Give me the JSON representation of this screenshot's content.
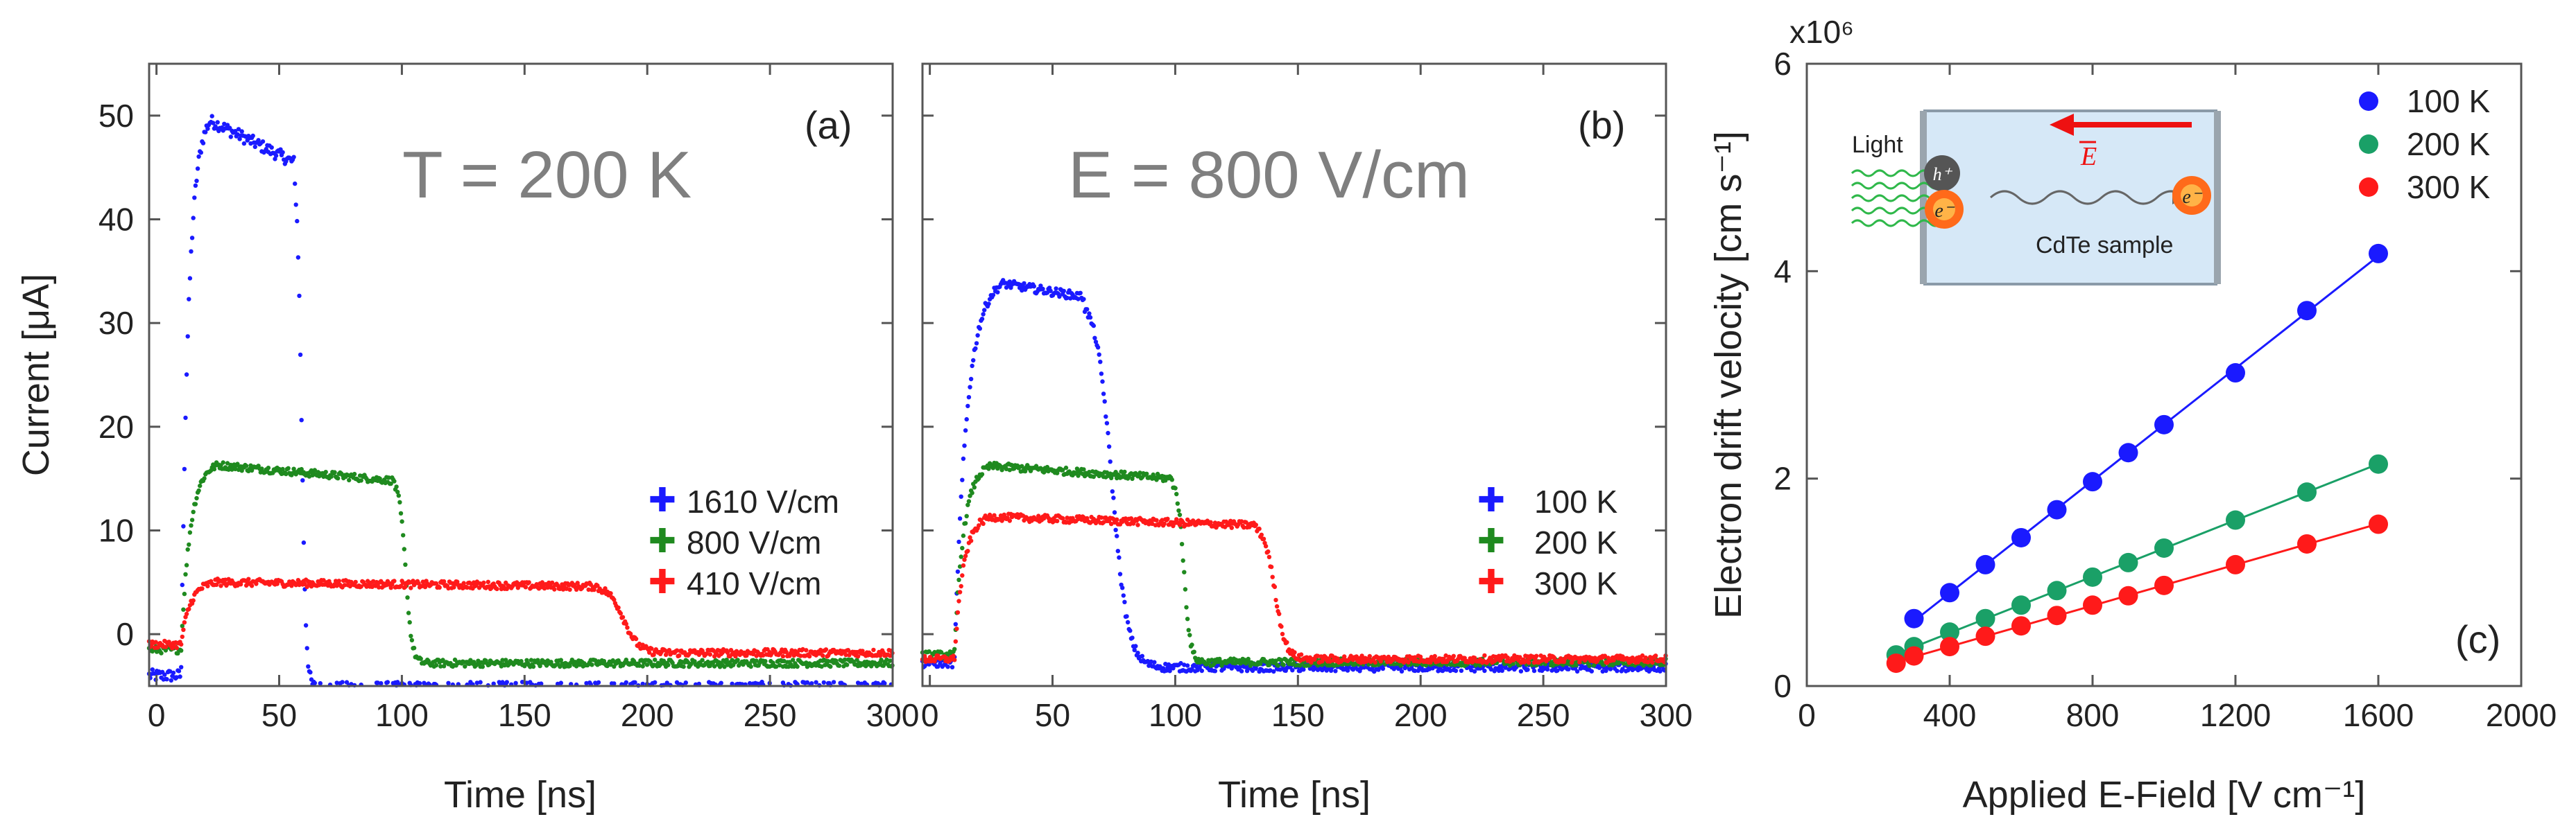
{
  "colors": {
    "blue": "#1a1aff",
    "green": "#1f8a1f",
    "red": "#ff1a1a",
    "teal": "#1aa067",
    "gray": "#7f7f7f",
    "inset_bg": "#d6e8f7"
  },
  "chart_data": [
    {
      "type": "scatter",
      "panel": "(a)",
      "annotation": "T = 200 K",
      "xlabel": "Time [ns]",
      "ylabel": "Current [μA]",
      "xlim": [
        -3,
        300
      ],
      "ylim": [
        -5,
        55
      ],
      "xticks": [
        0,
        50,
        100,
        150,
        200,
        250,
        300
      ],
      "yticks": [
        0,
        10,
        20,
        30,
        40,
        50
      ],
      "legend_position": "bottom-right",
      "series": [
        {
          "name": "1610 V/cm",
          "color": "#1a1aff",
          "baseline": -4.0,
          "rise_start": 10,
          "peak_time": 22,
          "peak": 49.5,
          "plateau_end_time": 56,
          "plateau_end_value": 45.5,
          "fall_end": 65,
          "tail": -5.2
        },
        {
          "name": "800 V/cm",
          "color": "#1f8a1f",
          "baseline": -1.5,
          "rise_start": 10,
          "peak_time": 25,
          "peak": 16.3,
          "plateau_end_time": 97,
          "plateau_end_value": 14.8,
          "fall_end": 110,
          "tail": -2.8
        },
        {
          "name": "410 V/cm",
          "color": "#ff1a1a",
          "baseline": -1.0,
          "rise_start": 10,
          "peak_time": 25,
          "peak": 5.0,
          "plateau_end_time": 180,
          "plateau_end_value": 4.6,
          "fall_end": 210,
          "tail": -1.8
        }
      ]
    },
    {
      "type": "scatter",
      "panel": "(b)",
      "annotation": "E = 800 V/cm",
      "xlabel": "Time [ns]",
      "ylabel": "",
      "xlim": [
        -3,
        300
      ],
      "ylim": [
        -5,
        55
      ],
      "xticks": [
        0,
        50,
        100,
        150,
        200,
        250,
        300
      ],
      "yticks": [
        0,
        10,
        20,
        30,
        40,
        50
      ],
      "legend_position": "bottom-right",
      "series": [
        {
          "name": "100 K",
          "color": "#1a1aff",
          "baseline": -2.8,
          "rise_start": 10,
          "peak_time": 30,
          "peak": 33.8,
          "plateau_end_time": 63,
          "plateau_end_value": 32.5,
          "fall_end": 95,
          "tail": -3.2
        },
        {
          "name": "200 K",
          "color": "#1f8a1f",
          "baseline": -2.0,
          "rise_start": 10,
          "peak_time": 25,
          "peak": 16.2,
          "plateau_end_time": 99,
          "plateau_end_value": 15.0,
          "fall_end": 112,
          "tail": -2.7
        },
        {
          "name": "300 K",
          "color": "#ff1a1a",
          "baseline": -2.4,
          "rise_start": 10,
          "peak_time": 25,
          "peak": 11.3,
          "plateau_end_time": 133,
          "plateau_end_value": 10.5,
          "fall_end": 155,
          "tail": -2.4
        }
      ]
    },
    {
      "type": "scatter",
      "panel": "(c)",
      "xlabel": "Applied E-Field [V cm⁻¹]",
      "ylabel": "Electron drift velocity [cm s⁻¹]",
      "y_multiplier": "x10⁶",
      "xlim": [
        0,
        2000
      ],
      "ylim": [
        0,
        6
      ],
      "xticks": [
        0,
        400,
        800,
        1200,
        1600,
        2000
      ],
      "yticks": [
        0,
        2,
        4,
        6
      ],
      "legend_position": "top-right",
      "series": [
        {
          "name": "100 K",
          "color": "#1a1aff",
          "x": [
            300,
            400,
            500,
            600,
            700,
            800,
            900,
            1000,
            1200,
            1400,
            1600
          ],
          "y": [
            0.65,
            0.9,
            1.17,
            1.43,
            1.7,
            1.97,
            2.25,
            2.52,
            3.02,
            3.62,
            4.17
          ]
        },
        {
          "name": "200 K",
          "color": "#1aa067",
          "x": [
            250,
            300,
            400,
            500,
            600,
            700,
            800,
            900,
            1000,
            1200,
            1400,
            1600
          ],
          "y": [
            0.3,
            0.38,
            0.52,
            0.65,
            0.78,
            0.92,
            1.05,
            1.19,
            1.33,
            1.6,
            1.87,
            2.14
          ]
        },
        {
          "name": "300 K",
          "color": "#ff1a1a",
          "x": [
            250,
            300,
            400,
            500,
            600,
            700,
            800,
            900,
            1000,
            1200,
            1400,
            1600
          ],
          "y": [
            0.22,
            0.29,
            0.38,
            0.48,
            0.58,
            0.68,
            0.78,
            0.87,
            0.97,
            1.17,
            1.37,
            1.56
          ]
        }
      ],
      "inset": {
        "light_label": "Light",
        "field_label": "E",
        "hole_label": "h⁺",
        "electron_label": "e⁻",
        "sample_label": "CdTe sample"
      }
    }
  ]
}
